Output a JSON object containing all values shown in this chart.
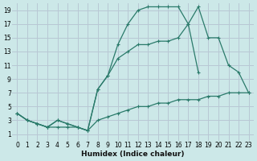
{
  "xlabel": "Humidex (Indice chaleur)",
  "bg_color": "#cce8e8",
  "grid_color": "#b8c8d4",
  "line_color": "#2a7a6a",
  "xlim": [
    -0.5,
    23.5
  ],
  "ylim": [
    0,
    20
  ],
  "xticks": [
    0,
    1,
    2,
    3,
    4,
    5,
    6,
    7,
    8,
    9,
    10,
    11,
    12,
    13,
    14,
    15,
    16,
    17,
    18,
    19,
    20,
    21,
    22,
    23
  ],
  "yticks": [
    1,
    3,
    5,
    7,
    9,
    11,
    13,
    15,
    17,
    19
  ],
  "line1_x": [
    0,
    1,
    2,
    3,
    4,
    5,
    6,
    7,
    8,
    9,
    10,
    11,
    12,
    13,
    14,
    15,
    16,
    17,
    18,
    19,
    20,
    21,
    22,
    23
  ],
  "line1_y": [
    4,
    3,
    2.5,
    2,
    2,
    2,
    2,
    1.5,
    3,
    3.5,
    4,
    4.5,
    5,
    5,
    5.5,
    5.5,
    6,
    6,
    6,
    6.5,
    6.5,
    7,
    7,
    7
  ],
  "line2_x": [
    0,
    1,
    2,
    3,
    4,
    5,
    6,
    7,
    8,
    9,
    10,
    11,
    12,
    13,
    14,
    15,
    16,
    17,
    18,
    19,
    20,
    21,
    22,
    23
  ],
  "line2_y": [
    4,
    3,
    2.5,
    2,
    3,
    2.5,
    2,
    1.5,
    7.5,
    9.5,
    14,
    17,
    19,
    19.5,
    19.5,
    19.5,
    19.5,
    17,
    19.5,
    15,
    15,
    11,
    10,
    7
  ],
  "line3_x": [
    0,
    1,
    2,
    3,
    4,
    5,
    6,
    7,
    8,
    9,
    10,
    11,
    12,
    13,
    14,
    15,
    16,
    17,
    18
  ],
  "line3_y": [
    4,
    3,
    2.5,
    2,
    3,
    2.5,
    2,
    1.5,
    7.5,
    9.5,
    12,
    13,
    14,
    14,
    14.5,
    14.5,
    15,
    17,
    10
  ]
}
